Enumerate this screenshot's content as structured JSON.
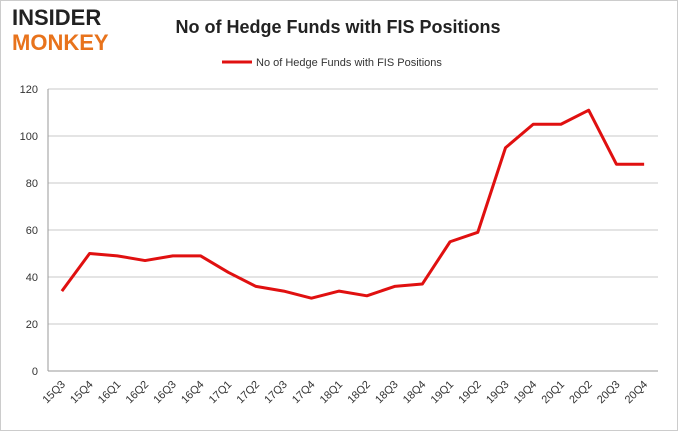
{
  "logo": {
    "line1": "INSIDER",
    "line2": "MONKEY"
  },
  "chart_data": {
    "type": "line",
    "title": "No of Hedge Funds with FIS Positions",
    "categories": [
      "15Q3",
      "15Q4",
      "16Q1",
      "16Q2",
      "16Q3",
      "16Q4",
      "17Q1",
      "17Q2",
      "17Q3",
      "17Q4",
      "18Q1",
      "18Q2",
      "18Q3",
      "18Q4",
      "19Q1",
      "19Q2",
      "19Q3",
      "19Q4",
      "20Q1",
      "20Q2",
      "20Q3",
      "20Q4"
    ],
    "series": [
      {
        "name": "No of Hedge Funds with FIS Positions",
        "color": "#e01010",
        "values": [
          34,
          50,
          49,
          47,
          49,
          49,
          42,
          36,
          34,
          31,
          34,
          32,
          36,
          37,
          55,
          59,
          95,
          105,
          105,
          111,
          88,
          88
        ]
      }
    ],
    "ylim": [
      0,
      120
    ],
    "yticks": [
      0,
      20,
      40,
      60,
      80,
      100,
      120
    ],
    "grid": true,
    "legend": "top"
  }
}
